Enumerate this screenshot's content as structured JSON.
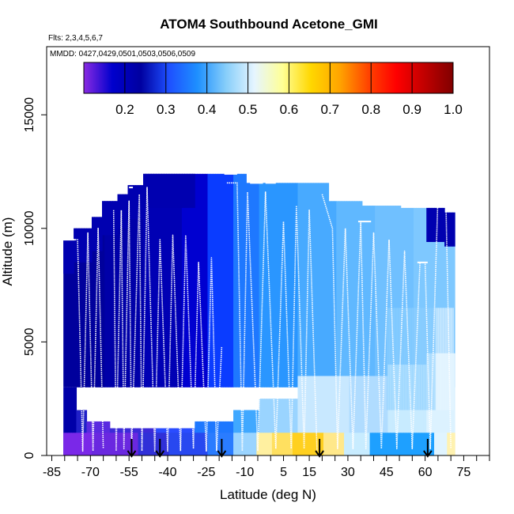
{
  "chart_data": {
    "type": "heatmap",
    "title": "ATOM4 Southbound Acetone_GMI",
    "flights_text": "Flts: 2,3,4,5,6,7",
    "dates_text": "MMDD: 0427,0429,0501,0503,0506,0509",
    "xlabel": "Latitude (deg N)",
    "ylabel": "Altitude (m)",
    "xlim": [
      -87,
      85
    ],
    "ylim": [
      0,
      18000
    ],
    "x_ticks": [
      -85,
      -70,
      -55,
      -40,
      -25,
      -10,
      5,
      15,
      30,
      45,
      60,
      75
    ],
    "x_minor_ticks": [
      -80,
      -75,
      -65,
      -60,
      -50,
      -45,
      -35,
      -30,
      -20,
      -15,
      -5,
      0,
      10,
      20,
      25,
      35,
      40,
      50,
      55,
      65,
      70,
      80,
      85
    ],
    "y_ticks": [
      0,
      5000,
      10000,
      15000
    ],
    "colorbar": {
      "range": [
        0.1,
        1.0
      ],
      "tick_values": [
        0.2,
        0.3,
        0.4,
        0.5,
        0.6,
        0.7,
        0.8,
        0.9,
        1.0
      ],
      "tick_labels": [
        "0.2",
        "0.3",
        "0.4",
        "0.5",
        "0.6",
        "0.7",
        "0.8",
        "0.9",
        "1.0"
      ],
      "colors": [
        "#8a2be2",
        "#0000cd",
        "#0000a0",
        "#1e50ff",
        "#1e90ff",
        "#87cefa",
        "#e6f5ff",
        "#ffff96",
        "#ffd700",
        "#ffa500",
        "#ff4500",
        "#ff0000",
        "#c00000",
        "#800000"
      ]
    },
    "column_tops": [
      [
        -80.5,
        9500
      ],
      [
        -77,
        10000
      ],
      [
        -70,
        10500
      ],
      [
        -66,
        11200
      ],
      [
        -60,
        11500
      ],
      [
        -56,
        11900
      ],
      [
        -50,
        12400
      ],
      [
        -22,
        12400
      ],
      [
        -10,
        12000
      ],
      [
        15,
        12000
      ],
      [
        22,
        11200
      ],
      [
        35,
        11000
      ],
      [
        50,
        10900
      ],
      [
        67,
        10700
      ],
      [
        71,
        10700
      ]
    ],
    "arrows_lat": [
      -54,
      -43,
      -19,
      19,
      61
    ],
    "flight_profiles": [
      [
        -79,
        -79,
        -78,
        -77,
        -76,
        -75,
        -74,
        -73,
        -72,
        -71,
        -70,
        -69,
        -68,
        -67,
        -66,
        -65,
        -64,
        -63,
        -62
      ],
      [
        [
          -79,
          9500
        ],
        [
          -75,
          9500
        ],
        [
          -73,
          200
        ],
        [
          -71,
          9800
        ],
        [
          -69,
          200
        ],
        [
          -67,
          10000
        ],
        [
          -65,
          300
        ]
      ],
      [
        [
          -61,
          10800
        ],
        [
          -60,
          200
        ],
        [
          -58,
          10800
        ],
        [
          -57,
          300
        ],
        [
          -55,
          11200
        ],
        [
          -54,
          200
        ],
        [
          -51,
          11500
        ],
        [
          -50,
          200
        ],
        [
          -48,
          11800
        ],
        [
          -45,
          200
        ],
        [
          -43,
          9500
        ],
        [
          -40,
          200
        ],
        [
          -38,
          9700
        ],
        [
          -35,
          200
        ],
        [
          -33,
          9700
        ],
        [
          -30,
          300
        ],
        [
          -28,
          8500
        ],
        [
          -25,
          200
        ],
        [
          -23,
          8700
        ],
        [
          -21,
          200
        ],
        [
          -19,
          4800
        ]
      ],
      [
        [
          -17,
          12000
        ],
        [
          -13,
          12000
        ],
        [
          -11,
          200
        ],
        [
          -9,
          11600
        ],
        [
          -5,
          200
        ],
        [
          -2,
          11600
        ],
        [
          2,
          300
        ],
        [
          5,
          10300
        ],
        [
          8,
          300
        ],
        [
          10,
          11000
        ],
        [
          13,
          300
        ],
        [
          15,
          10800
        ],
        [
          18,
          200
        ]
      ],
      [
        [
          20,
          11500
        ],
        [
          24,
          10000
        ],
        [
          26,
          300
        ],
        [
          29,
          10000
        ],
        [
          32,
          300
        ],
        [
          35,
          10300
        ],
        [
          37,
          300
        ],
        [
          40,
          9800
        ],
        [
          43,
          300
        ],
        [
          46,
          9500
        ],
        [
          49,
          300
        ],
        [
          52,
          9000
        ],
        [
          55,
          300
        ],
        [
          58,
          8500
        ],
        [
          60,
          8500
        ],
        [
          62,
          300
        ],
        [
          65,
          11500
        ],
        [
          68,
          11500
        ],
        [
          70,
          300
        ]
      ]
    ]
  }
}
